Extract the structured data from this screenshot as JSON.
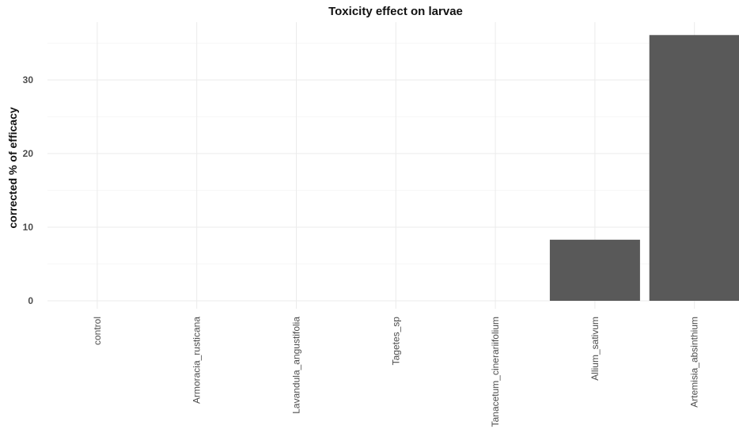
{
  "chart_data": {
    "type": "bar",
    "title": "Toxicity effect on larvae",
    "xlabel": "",
    "ylabel": "corrected % of efficacy",
    "categories": [
      "control",
      "Armoracia_rusticana",
      "Lavandula_angustifolia",
      "Tagetes_sp",
      "Tanacetum_cinerariifolium",
      "Allium_sativum",
      "Artemisia_absinthium"
    ],
    "values": [
      0,
      0,
      0,
      0,
      0,
      8.3,
      36.1
    ],
    "ylim": [
      0,
      38
    ],
    "yticks": [
      0,
      10,
      20,
      30
    ],
    "grid": true,
    "bar_color": "#595959",
    "grid_color": "#ebebeb"
  }
}
